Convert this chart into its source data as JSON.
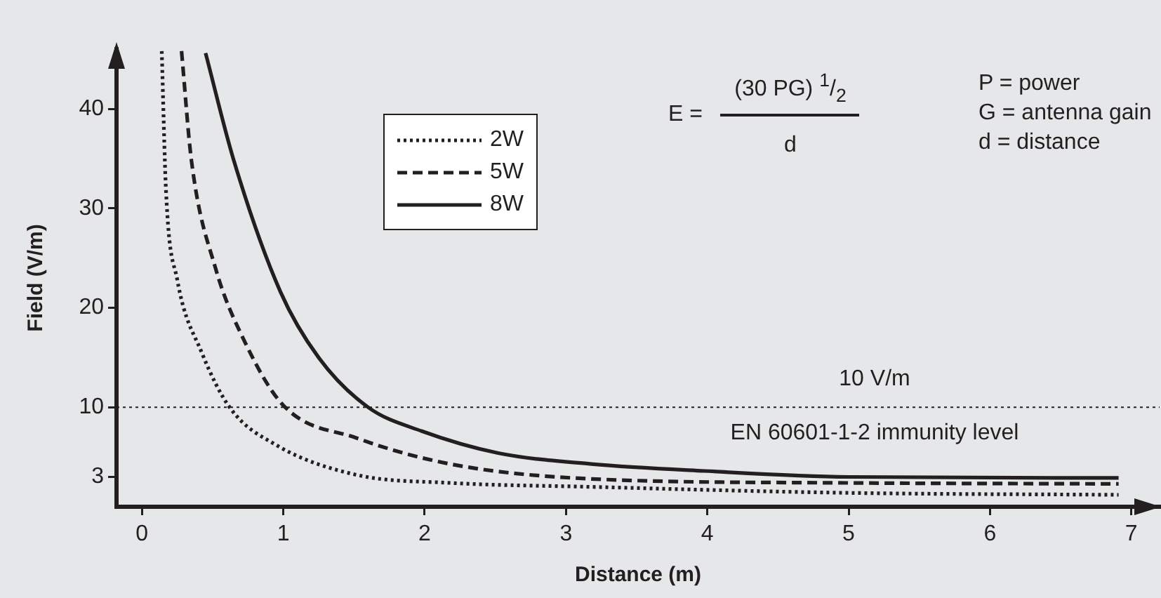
{
  "chart_data": {
    "type": "line",
    "xlabel": "Distance (m)",
    "ylabel": "Field (V/m)",
    "xlim": [
      -0.18,
      7.2
    ],
    "xticks": [
      0,
      1,
      2,
      3,
      4,
      5,
      6,
      7
    ],
    "ylim": [
      0,
      46
    ],
    "yticks": [
      3,
      10,
      20,
      30,
      40
    ],
    "grid": false,
    "legend": "top left",
    "marker": "none",
    "series": [
      {
        "name": "2W",
        "color": "#231f20",
        "line_style": "dotted",
        "x": [
          0.14,
          0.17,
          0.25,
          0.42,
          0.62,
          0.95,
          1.52,
          2.18,
          3.18,
          4.98,
          6.91
        ],
        "values": [
          45.8,
          31.8,
          22.8,
          15.6,
          10,
          6.2,
          3.2,
          2.4,
          2,
          1.4,
          1.2
        ]
      },
      {
        "name": "5W",
        "color": "#231f20",
        "line_style": "dashed",
        "x": [
          0.28,
          0.35,
          0.52,
          0.72,
          1.0,
          1.52,
          2.18,
          3.18,
          4.98,
          6.91
        ],
        "values": [
          45.8,
          34.8,
          24.0,
          16.8,
          10.2,
          6.9,
          4.3,
          2.8,
          2.4,
          2.3
        ]
      },
      {
        "name": "8W",
        "color": "#231f20",
        "line_style": "solid",
        "x": [
          0.45,
          0.65,
          0.98,
          1.25,
          1.6,
          1.98,
          2.52,
          3.18,
          3.98,
          5.0,
          6.91
        ],
        "values": [
          45.6,
          34.8,
          21.6,
          15.0,
          10,
          7.6,
          5.4,
          4.3,
          3.6,
          3.0,
          2.9
        ]
      }
    ],
    "ref_lines": [
      {
        "axis": "y",
        "value": 10,
        "label": "10 V/m",
        "line_style": "dotted",
        "color": "#231f20"
      }
    ],
    "annotations": [
      "E =",
      "(30 PG) $^{1}$/$_{2}$",
      "d",
      "P = power",
      "G = antenna gain",
      "d = distance",
      "EN 60601-1-2 immunity level"
    ]
  }
}
